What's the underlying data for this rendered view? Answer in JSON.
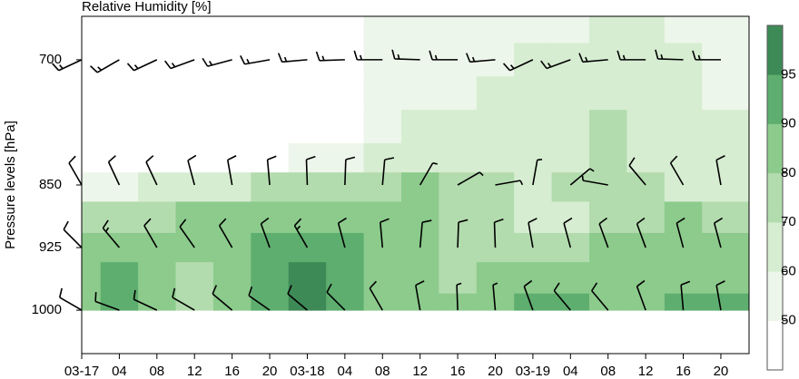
{
  "chart_data": {
    "type": "contour",
    "title": "Relative Humidity [%]",
    "ylabel": "Pressure levels [hPa]",
    "x": [
      0,
      4,
      8,
      12,
      16,
      20,
      24,
      28,
      32,
      36,
      40,
      44,
      48,
      52,
      56,
      60,
      64,
      68
    ],
    "pressure": [
      660,
      700,
      740,
      780,
      820,
      850,
      890,
      925,
      960,
      1000
    ],
    "values": [
      [
        40,
        40,
        40,
        40,
        40,
        40,
        40,
        45,
        55,
        52,
        52,
        55,
        58,
        58,
        62,
        60,
        58,
        55
      ],
      [
        40,
        40,
        40,
        40,
        40,
        40,
        40,
        45,
        55,
        55,
        55,
        58,
        60,
        62,
        65,
        62,
        60,
        58
      ],
      [
        40,
        40,
        40,
        40,
        40,
        40,
        40,
        45,
        52,
        55,
        58,
        60,
        62,
        65,
        68,
        62,
        60,
        58
      ],
      [
        40,
        40,
        40,
        40,
        40,
        40,
        40,
        45,
        55,
        60,
        62,
        62,
        62,
        65,
        70,
        65,
        62,
        60
      ],
      [
        40,
        40,
        40,
        42,
        45,
        48,
        52,
        58,
        62,
        65,
        65,
        65,
        65,
        68,
        72,
        68,
        65,
        60
      ],
      [
        55,
        58,
        62,
        65,
        68,
        70,
        72,
        75,
        78,
        80,
        78,
        70,
        68,
        70,
        72,
        72,
        68,
        65
      ],
      [
        70,
        72,
        75,
        80,
        80,
        82,
        82,
        82,
        80,
        80,
        75,
        70,
        65,
        68,
        72,
        78,
        80,
        78
      ],
      [
        82,
        82,
        80,
        80,
        82,
        90,
        92,
        90,
        85,
        80,
        75,
        72,
        70,
        72,
        80,
        82,
        82,
        80
      ],
      [
        85,
        92,
        80,
        78,
        82,
        92,
        95,
        92,
        88,
        80,
        78,
        82,
        85,
        85,
        85,
        82,
        85,
        88
      ],
      [
        82,
        90,
        80,
        72,
        85,
        92,
        96,
        92,
        85,
        80,
        80,
        88,
        92,
        92,
        88,
        82,
        92,
        92
      ]
    ],
    "xlim": [
      0,
      71
    ],
    "ylim": [
      1052,
      648
    ],
    "xticks": [
      {
        "value": 0,
        "label": "03-17"
      },
      {
        "value": 4,
        "label": "04"
      },
      {
        "value": 8,
        "label": "08"
      },
      {
        "value": 12,
        "label": "12"
      },
      {
        "value": 16,
        "label": "16"
      },
      {
        "value": 20,
        "label": "20"
      },
      {
        "value": 24,
        "label": "03-18"
      },
      {
        "value": 28,
        "label": "04"
      },
      {
        "value": 32,
        "label": "08"
      },
      {
        "value": 36,
        "label": "12"
      },
      {
        "value": 40,
        "label": "16"
      },
      {
        "value": 44,
        "label": "20"
      },
      {
        "value": 48,
        "label": "03-19"
      },
      {
        "value": 52,
        "label": "04"
      },
      {
        "value": 56,
        "label": "08"
      },
      {
        "value": 60,
        "label": "12"
      },
      {
        "value": 64,
        "label": "16"
      },
      {
        "value": 68,
        "label": "20"
      }
    ],
    "yticks": [
      700,
      850,
      925,
      1000
    ],
    "colorbar": {
      "levels": [
        40,
        50,
        60,
        70,
        80,
        90,
        95,
        100
      ],
      "colors": [
        "#ffffff",
        "#edf6ea",
        "#d6edd1",
        "#b3dcae",
        "#8ccb8c",
        "#5eae6f",
        "#3e8a57"
      ],
      "ticks": [
        50,
        60,
        70,
        80,
        90,
        95
      ]
    },
    "wind": {
      "levels": [
        700,
        850,
        925,
        1000
      ],
      "dir": [
        [
          245,
          240,
          245,
          250,
          255,
          260,
          265,
          268,
          270,
          272,
          270,
          265,
          245,
          250,
          265,
          270,
          272,
          270
        ],
        [
          330,
          335,
          335,
          345,
          350,
          355,
          358,
          2,
          5,
          30,
          60,
          80,
          10,
          50,
          280,
          320,
          330,
          350
        ],
        [
          315,
          320,
          330,
          325,
          330,
          340,
          330,
          345,
          355,
          5,
          2,
          358,
          350,
          345,
          340,
          340,
          345,
          345
        ],
        [
          300,
          290,
          295,
          300,
          310,
          305,
          310,
          315,
          330,
          350,
          358,
          355,
          340,
          320,
          320,
          340,
          355,
          350
        ]
      ],
      "speed": [
        [
          15,
          15,
          15,
          15,
          15,
          15,
          15,
          15,
          15,
          15,
          15,
          15,
          15,
          15,
          15,
          15,
          15,
          15
        ],
        [
          10,
          10,
          10,
          10,
          10,
          10,
          10,
          10,
          10,
          5,
          5,
          5,
          5,
          5,
          5,
          10,
          10,
          10
        ],
        [
          10,
          15,
          10,
          10,
          10,
          10,
          15,
          10,
          10,
          10,
          10,
          10,
          10,
          10,
          10,
          10,
          10,
          10
        ],
        [
          10,
          10,
          10,
          10,
          10,
          10,
          10,
          10,
          10,
          10,
          5,
          5,
          10,
          10,
          10,
          10,
          10,
          10
        ]
      ]
    }
  }
}
